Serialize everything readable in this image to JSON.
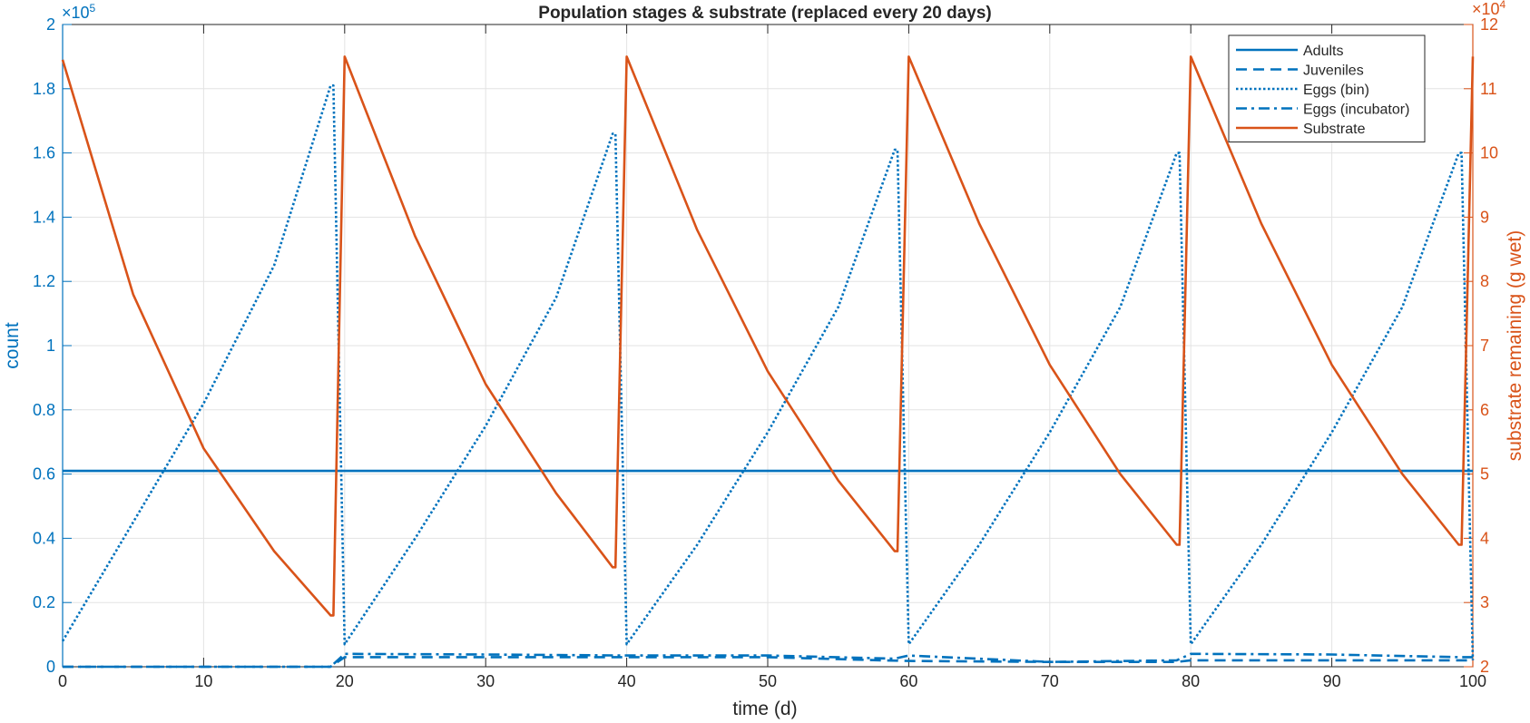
{
  "chart_data": {
    "type": "line",
    "title": "Population stages & substrate (replaced every 20 days)",
    "xlabel": "time (d)",
    "ylabel_left": "count",
    "ylabel_right": "substrate remaining (g wet)",
    "left_exponent": "×10",
    "left_exponent_power": "5",
    "right_exponent": "×10",
    "right_exponent_power": "4",
    "xlim": [
      0,
      100
    ],
    "ylim_left": [
      0,
      200000
    ],
    "ylim_right": [
      20000,
      120000
    ],
    "xticks": [
      0,
      10,
      20,
      30,
      40,
      50,
      60,
      70,
      80,
      90,
      100
    ],
    "xtick_labels": [
      "0",
      "10",
      "20",
      "30",
      "40",
      "50",
      "60",
      "70",
      "80",
      "90",
      "100"
    ],
    "yticks_left": [
      0,
      20000,
      40000,
      60000,
      80000,
      100000,
      120000,
      140000,
      160000,
      180000,
      200000
    ],
    "ytick_labels_left": [
      "0",
      "0.2",
      "0.4",
      "0.6",
      "0.8",
      "1",
      "1.2",
      "1.4",
      "1.6",
      "1.8",
      "2"
    ],
    "yticks_right": [
      20000,
      30000,
      40000,
      50000,
      60000,
      70000,
      80000,
      90000,
      100000,
      110000,
      120000
    ],
    "ytick_labels_right": [
      "2",
      "3",
      "4",
      "5",
      "6",
      "7",
      "8",
      "9",
      "10",
      "11",
      "12"
    ],
    "grid": true,
    "legend_position": "top-right",
    "colors": {
      "blue": "#0072BD",
      "orange": "#D95319",
      "axis": "#262626"
    },
    "series": [
      {
        "name": "Adults",
        "axis": "left",
        "style": "solid",
        "color": "#0072BD",
        "points": [
          [
            0,
            61000
          ],
          [
            100,
            61000
          ]
        ]
      },
      {
        "name": "Juveniles",
        "axis": "left",
        "style": "dashed",
        "color": "#0072BD",
        "points": [
          [
            0,
            0
          ],
          [
            19,
            0
          ],
          [
            20,
            3000
          ],
          [
            40,
            3000
          ],
          [
            50,
            3000
          ],
          [
            58,
            2000
          ],
          [
            60,
            1800
          ],
          [
            70,
            1500
          ],
          [
            79,
            1500
          ],
          [
            80,
            2000
          ],
          [
            90,
            2000
          ],
          [
            100,
            2000
          ]
        ]
      },
      {
        "name": "Eggs (bin)",
        "axis": "left",
        "style": "dotted",
        "color": "#0072BD",
        "points": [
          [
            0,
            8000
          ],
          [
            5,
            45000
          ],
          [
            10,
            82000
          ],
          [
            15,
            125000
          ],
          [
            19,
            181000
          ],
          [
            19.2,
            181000
          ],
          [
            20,
            7000
          ],
          [
            25,
            40000
          ],
          [
            30,
            75000
          ],
          [
            35,
            115000
          ],
          [
            39,
            166000
          ],
          [
            39.2,
            166000
          ],
          [
            40,
            7000
          ],
          [
            45,
            38000
          ],
          [
            50,
            73000
          ],
          [
            55,
            112000
          ],
          [
            59,
            161000
          ],
          [
            59.2,
            161000
          ],
          [
            60,
            7000
          ],
          [
            65,
            38000
          ],
          [
            70,
            73000
          ],
          [
            75,
            112000
          ],
          [
            79,
            160000
          ],
          [
            79.2,
            160000
          ],
          [
            80,
            7000
          ],
          [
            85,
            38000
          ],
          [
            90,
            73000
          ],
          [
            95,
            112000
          ],
          [
            99,
            160000
          ],
          [
            99.2,
            160000
          ],
          [
            100,
            2000
          ]
        ]
      },
      {
        "name": "Eggs (incubator)",
        "axis": "left",
        "style": "dashdot",
        "color": "#0072BD",
        "points": [
          [
            0,
            0
          ],
          [
            19,
            0
          ],
          [
            20,
            4000
          ],
          [
            30,
            3800
          ],
          [
            40,
            3500
          ],
          [
            50,
            3500
          ],
          [
            59,
            2500
          ],
          [
            60,
            3500
          ],
          [
            70,
            1500
          ],
          [
            79,
            2000
          ],
          [
            80,
            4000
          ],
          [
            90,
            3800
          ],
          [
            99,
            3000
          ],
          [
            100,
            3000
          ]
        ]
      },
      {
        "name": "Substrate",
        "axis": "right",
        "style": "solid",
        "color": "#D95319",
        "points": [
          [
            0,
            114500
          ],
          [
            5,
            78000
          ],
          [
            10,
            54000
          ],
          [
            15,
            38000
          ],
          [
            19,
            28000
          ],
          [
            19.2,
            28000
          ],
          [
            20,
            115000
          ],
          [
            25,
            87000
          ],
          [
            30,
            64000
          ],
          [
            35,
            47000
          ],
          [
            39,
            35500
          ],
          [
            39.2,
            35500
          ],
          [
            40,
            115000
          ],
          [
            45,
            88000
          ],
          [
            50,
            66000
          ],
          [
            55,
            49000
          ],
          [
            59,
            38000
          ],
          [
            59.2,
            38000
          ],
          [
            60,
            115000
          ],
          [
            65,
            89000
          ],
          [
            70,
            67000
          ],
          [
            75,
            50000
          ],
          [
            79,
            39000
          ],
          [
            79.2,
            39000
          ],
          [
            80,
            115000
          ],
          [
            85,
            89000
          ],
          [
            90,
            67000
          ],
          [
            95,
            50000
          ],
          [
            99,
            39000
          ],
          [
            99.2,
            39000
          ],
          [
            100,
            115000
          ]
        ]
      }
    ]
  }
}
